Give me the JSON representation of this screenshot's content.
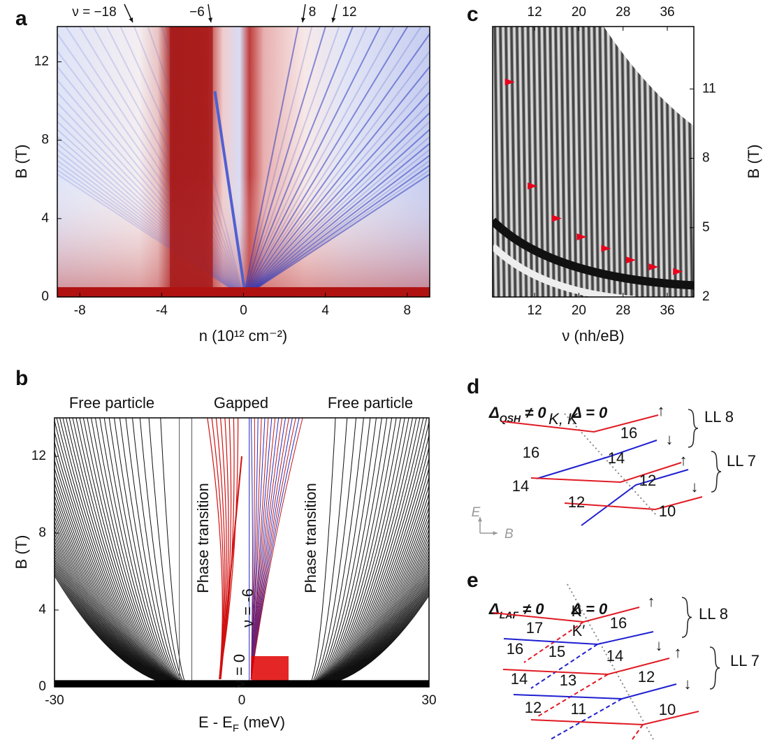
{
  "panel_letters": [
    "a",
    "b",
    "c",
    "d",
    "e"
  ],
  "chart_data": [
    {
      "type": "heatmap",
      "x_label": "n (10¹² cm⁻²)",
      "y_label": "B (T)",
      "xlim": [
        -9.1,
        9.1
      ],
      "xticks": [
        -8,
        -4,
        0,
        4,
        8
      ],
      "ylim": [
        0,
        13.8
      ],
      "yticks": [
        0,
        4,
        8,
        12
      ],
      "annotations": [
        "ν = −18",
        "−6",
        "8",
        "12"
      ]
    },
    {
      "type": "line",
      "title_labels": [
        "Free particle",
        "Gapped",
        "Free particle"
      ],
      "annotations": [
        "Phase transition",
        "Phase transition",
        "ν = -6",
        "ν = 0"
      ],
      "x_label": {
        "text": "E - E",
        "sub": "F",
        "unit": " (meV)"
      },
      "y_label": "B (T)",
      "xlim": [
        -30,
        30
      ],
      "xticks": [
        -30,
        0,
        30
      ],
      "ylim": [
        0,
        14
      ],
      "yticks": [
        0,
        4,
        8,
        12
      ]
    },
    {
      "type": "scatter",
      "x_label": "ν (nh/eB)",
      "y_label": "B (T)",
      "xlim": [
        4.4,
        40.8
      ],
      "xticks": [
        12,
        20,
        28,
        36
      ],
      "ylim": [
        2,
        13.7
      ],
      "yticks": [
        2,
        5,
        8,
        11
      ],
      "series": [
        {
          "color": "#e8001c",
          "x": [
            7.9,
            12,
            16.4,
            20.9,
            25.3,
            29.8,
            33.9,
            38.3
          ],
          "values": [
            11.3,
            6.8,
            5.4,
            4.6,
            4.1,
            3.6,
            3.3,
            3.1
          ]
        }
      ]
    }
  ],
  "diagrams": {
    "d": {
      "left": {
        "symbol": "Δ",
        "sub": "QSH",
        "rest": " ≠ 0"
      },
      "right": "Δ = 0",
      "valley": "K, K′",
      "numbers": [
        16,
        16,
        14,
        14,
        12,
        12,
        10
      ],
      "spins": [
        "↑",
        "↓",
        "↑",
        "↓"
      ],
      "levels": [
        "LL 8",
        "LL 7"
      ],
      "axes": [
        "E",
        "B"
      ]
    },
    "e": {
      "left": {
        "symbol": "Δ",
        "sub": "LAF",
        "rest": " ≠ 0"
      },
      "right": "Δ = 0",
      "valleys": [
        "K",
        "K′"
      ],
      "numbers": [
        17,
        16,
        16,
        15,
        14,
        14,
        13,
        12,
        12,
        11,
        10
      ],
      "spins": [
        "↑",
        "↓",
        "↑",
        "↓"
      ],
      "levels": [
        "LL 8",
        "LL 7"
      ]
    }
  }
}
